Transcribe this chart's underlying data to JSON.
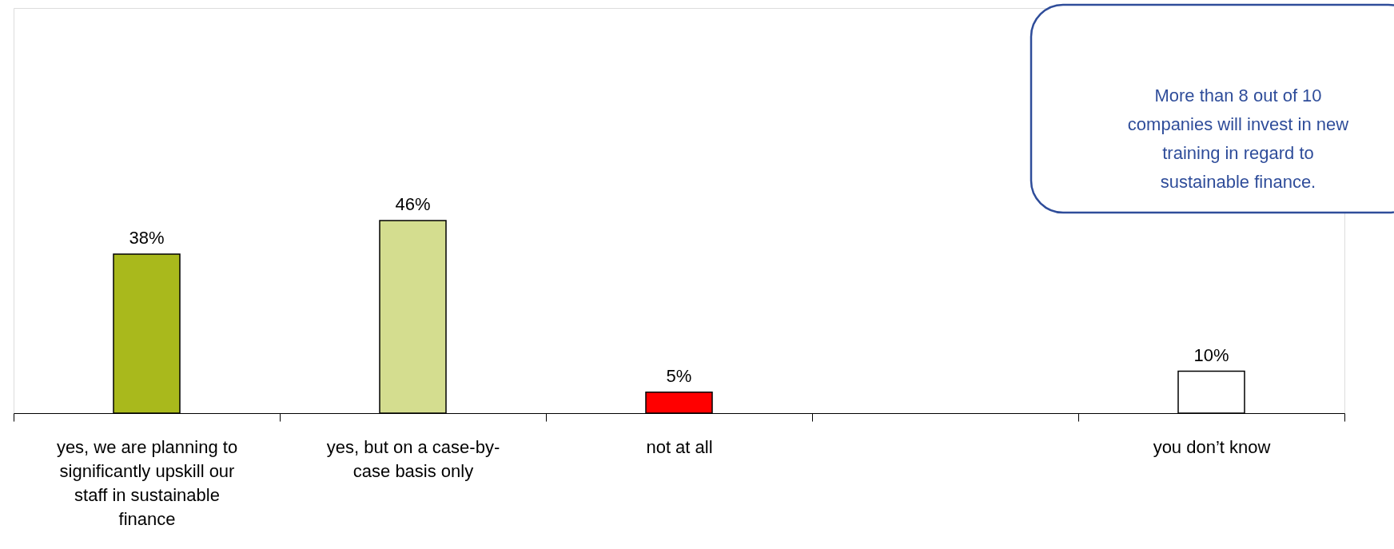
{
  "chart_data": {
    "type": "bar",
    "categories": [
      "yes, we are planning to significantly upskill our staff in sustainable finance",
      "yes, but on a case-by-case basis only",
      "not at all",
      null,
      "you don’t know"
    ],
    "values": [
      38,
      46,
      5,
      null,
      10
    ],
    "colors": [
      "#a9b91c",
      "#d4dd8f",
      "#ff0000",
      "#ffffff",
      "#ffffff"
    ],
    "value_labels": [
      "38%",
      "46%",
      "5%",
      null,
      "10%"
    ],
    "annotations": [
      "More than 8 out of 10 companies will invest in new training in regard to sustainable finance."
    ],
    "grid": false
  }
}
